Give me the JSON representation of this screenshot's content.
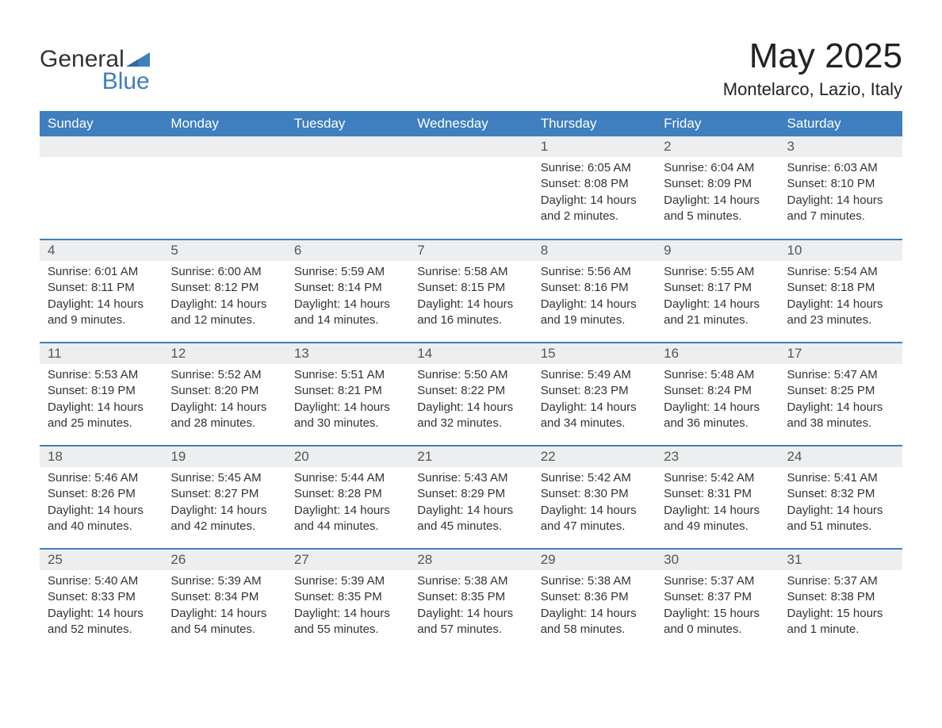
{
  "brand": {
    "line1": "General",
    "line2": "Blue",
    "text_color": "#333333",
    "accent_color": "#3f7ebf"
  },
  "header": {
    "title": "May 2025",
    "location": "Montelarco, Lazio, Italy"
  },
  "calendar": {
    "type": "calendar-month",
    "header_bg": "#3f7ebf",
    "header_text_color": "#ffffff",
    "daynum_bg": "#eceeef",
    "row_divider_color": "#3f7ebf",
    "background_color": "#ffffff",
    "text_color": "#333333",
    "font_family": "Arial",
    "header_fontsize": 17,
    "body_fontsize": 15,
    "weekdays": [
      "Sunday",
      "Monday",
      "Tuesday",
      "Wednesday",
      "Thursday",
      "Friday",
      "Saturday"
    ],
    "leading_blanks": 4,
    "days": [
      {
        "n": 1,
        "sunrise": "6:05 AM",
        "sunset": "8:08 PM",
        "daylight": "14 hours and 2 minutes."
      },
      {
        "n": 2,
        "sunrise": "6:04 AM",
        "sunset": "8:09 PM",
        "daylight": "14 hours and 5 minutes."
      },
      {
        "n": 3,
        "sunrise": "6:03 AM",
        "sunset": "8:10 PM",
        "daylight": "14 hours and 7 minutes."
      },
      {
        "n": 4,
        "sunrise": "6:01 AM",
        "sunset": "8:11 PM",
        "daylight": "14 hours and 9 minutes."
      },
      {
        "n": 5,
        "sunrise": "6:00 AM",
        "sunset": "8:12 PM",
        "daylight": "14 hours and 12 minutes."
      },
      {
        "n": 6,
        "sunrise": "5:59 AM",
        "sunset": "8:14 PM",
        "daylight": "14 hours and 14 minutes."
      },
      {
        "n": 7,
        "sunrise": "5:58 AM",
        "sunset": "8:15 PM",
        "daylight": "14 hours and 16 minutes."
      },
      {
        "n": 8,
        "sunrise": "5:56 AM",
        "sunset": "8:16 PM",
        "daylight": "14 hours and 19 minutes."
      },
      {
        "n": 9,
        "sunrise": "5:55 AM",
        "sunset": "8:17 PM",
        "daylight": "14 hours and 21 minutes."
      },
      {
        "n": 10,
        "sunrise": "5:54 AM",
        "sunset": "8:18 PM",
        "daylight": "14 hours and 23 minutes."
      },
      {
        "n": 11,
        "sunrise": "5:53 AM",
        "sunset": "8:19 PM",
        "daylight": "14 hours and 25 minutes."
      },
      {
        "n": 12,
        "sunrise": "5:52 AM",
        "sunset": "8:20 PM",
        "daylight": "14 hours and 28 minutes."
      },
      {
        "n": 13,
        "sunrise": "5:51 AM",
        "sunset": "8:21 PM",
        "daylight": "14 hours and 30 minutes."
      },
      {
        "n": 14,
        "sunrise": "5:50 AM",
        "sunset": "8:22 PM",
        "daylight": "14 hours and 32 minutes."
      },
      {
        "n": 15,
        "sunrise": "5:49 AM",
        "sunset": "8:23 PM",
        "daylight": "14 hours and 34 minutes."
      },
      {
        "n": 16,
        "sunrise": "5:48 AM",
        "sunset": "8:24 PM",
        "daylight": "14 hours and 36 minutes."
      },
      {
        "n": 17,
        "sunrise": "5:47 AM",
        "sunset": "8:25 PM",
        "daylight": "14 hours and 38 minutes."
      },
      {
        "n": 18,
        "sunrise": "5:46 AM",
        "sunset": "8:26 PM",
        "daylight": "14 hours and 40 minutes."
      },
      {
        "n": 19,
        "sunrise": "5:45 AM",
        "sunset": "8:27 PM",
        "daylight": "14 hours and 42 minutes."
      },
      {
        "n": 20,
        "sunrise": "5:44 AM",
        "sunset": "8:28 PM",
        "daylight": "14 hours and 44 minutes."
      },
      {
        "n": 21,
        "sunrise": "5:43 AM",
        "sunset": "8:29 PM",
        "daylight": "14 hours and 45 minutes."
      },
      {
        "n": 22,
        "sunrise": "5:42 AM",
        "sunset": "8:30 PM",
        "daylight": "14 hours and 47 minutes."
      },
      {
        "n": 23,
        "sunrise": "5:42 AM",
        "sunset": "8:31 PM",
        "daylight": "14 hours and 49 minutes."
      },
      {
        "n": 24,
        "sunrise": "5:41 AM",
        "sunset": "8:32 PM",
        "daylight": "14 hours and 51 minutes."
      },
      {
        "n": 25,
        "sunrise": "5:40 AM",
        "sunset": "8:33 PM",
        "daylight": "14 hours and 52 minutes."
      },
      {
        "n": 26,
        "sunrise": "5:39 AM",
        "sunset": "8:34 PM",
        "daylight": "14 hours and 54 minutes."
      },
      {
        "n": 27,
        "sunrise": "5:39 AM",
        "sunset": "8:35 PM",
        "daylight": "14 hours and 55 minutes."
      },
      {
        "n": 28,
        "sunrise": "5:38 AM",
        "sunset": "8:35 PM",
        "daylight": "14 hours and 57 minutes."
      },
      {
        "n": 29,
        "sunrise": "5:38 AM",
        "sunset": "8:36 PM",
        "daylight": "14 hours and 58 minutes."
      },
      {
        "n": 30,
        "sunrise": "5:37 AM",
        "sunset": "8:37 PM",
        "daylight": "15 hours and 0 minutes."
      },
      {
        "n": 31,
        "sunrise": "5:37 AM",
        "sunset": "8:38 PM",
        "daylight": "15 hours and 1 minute."
      }
    ],
    "labels": {
      "sunrise": "Sunrise",
      "sunset": "Sunset",
      "daylight": "Daylight"
    }
  }
}
